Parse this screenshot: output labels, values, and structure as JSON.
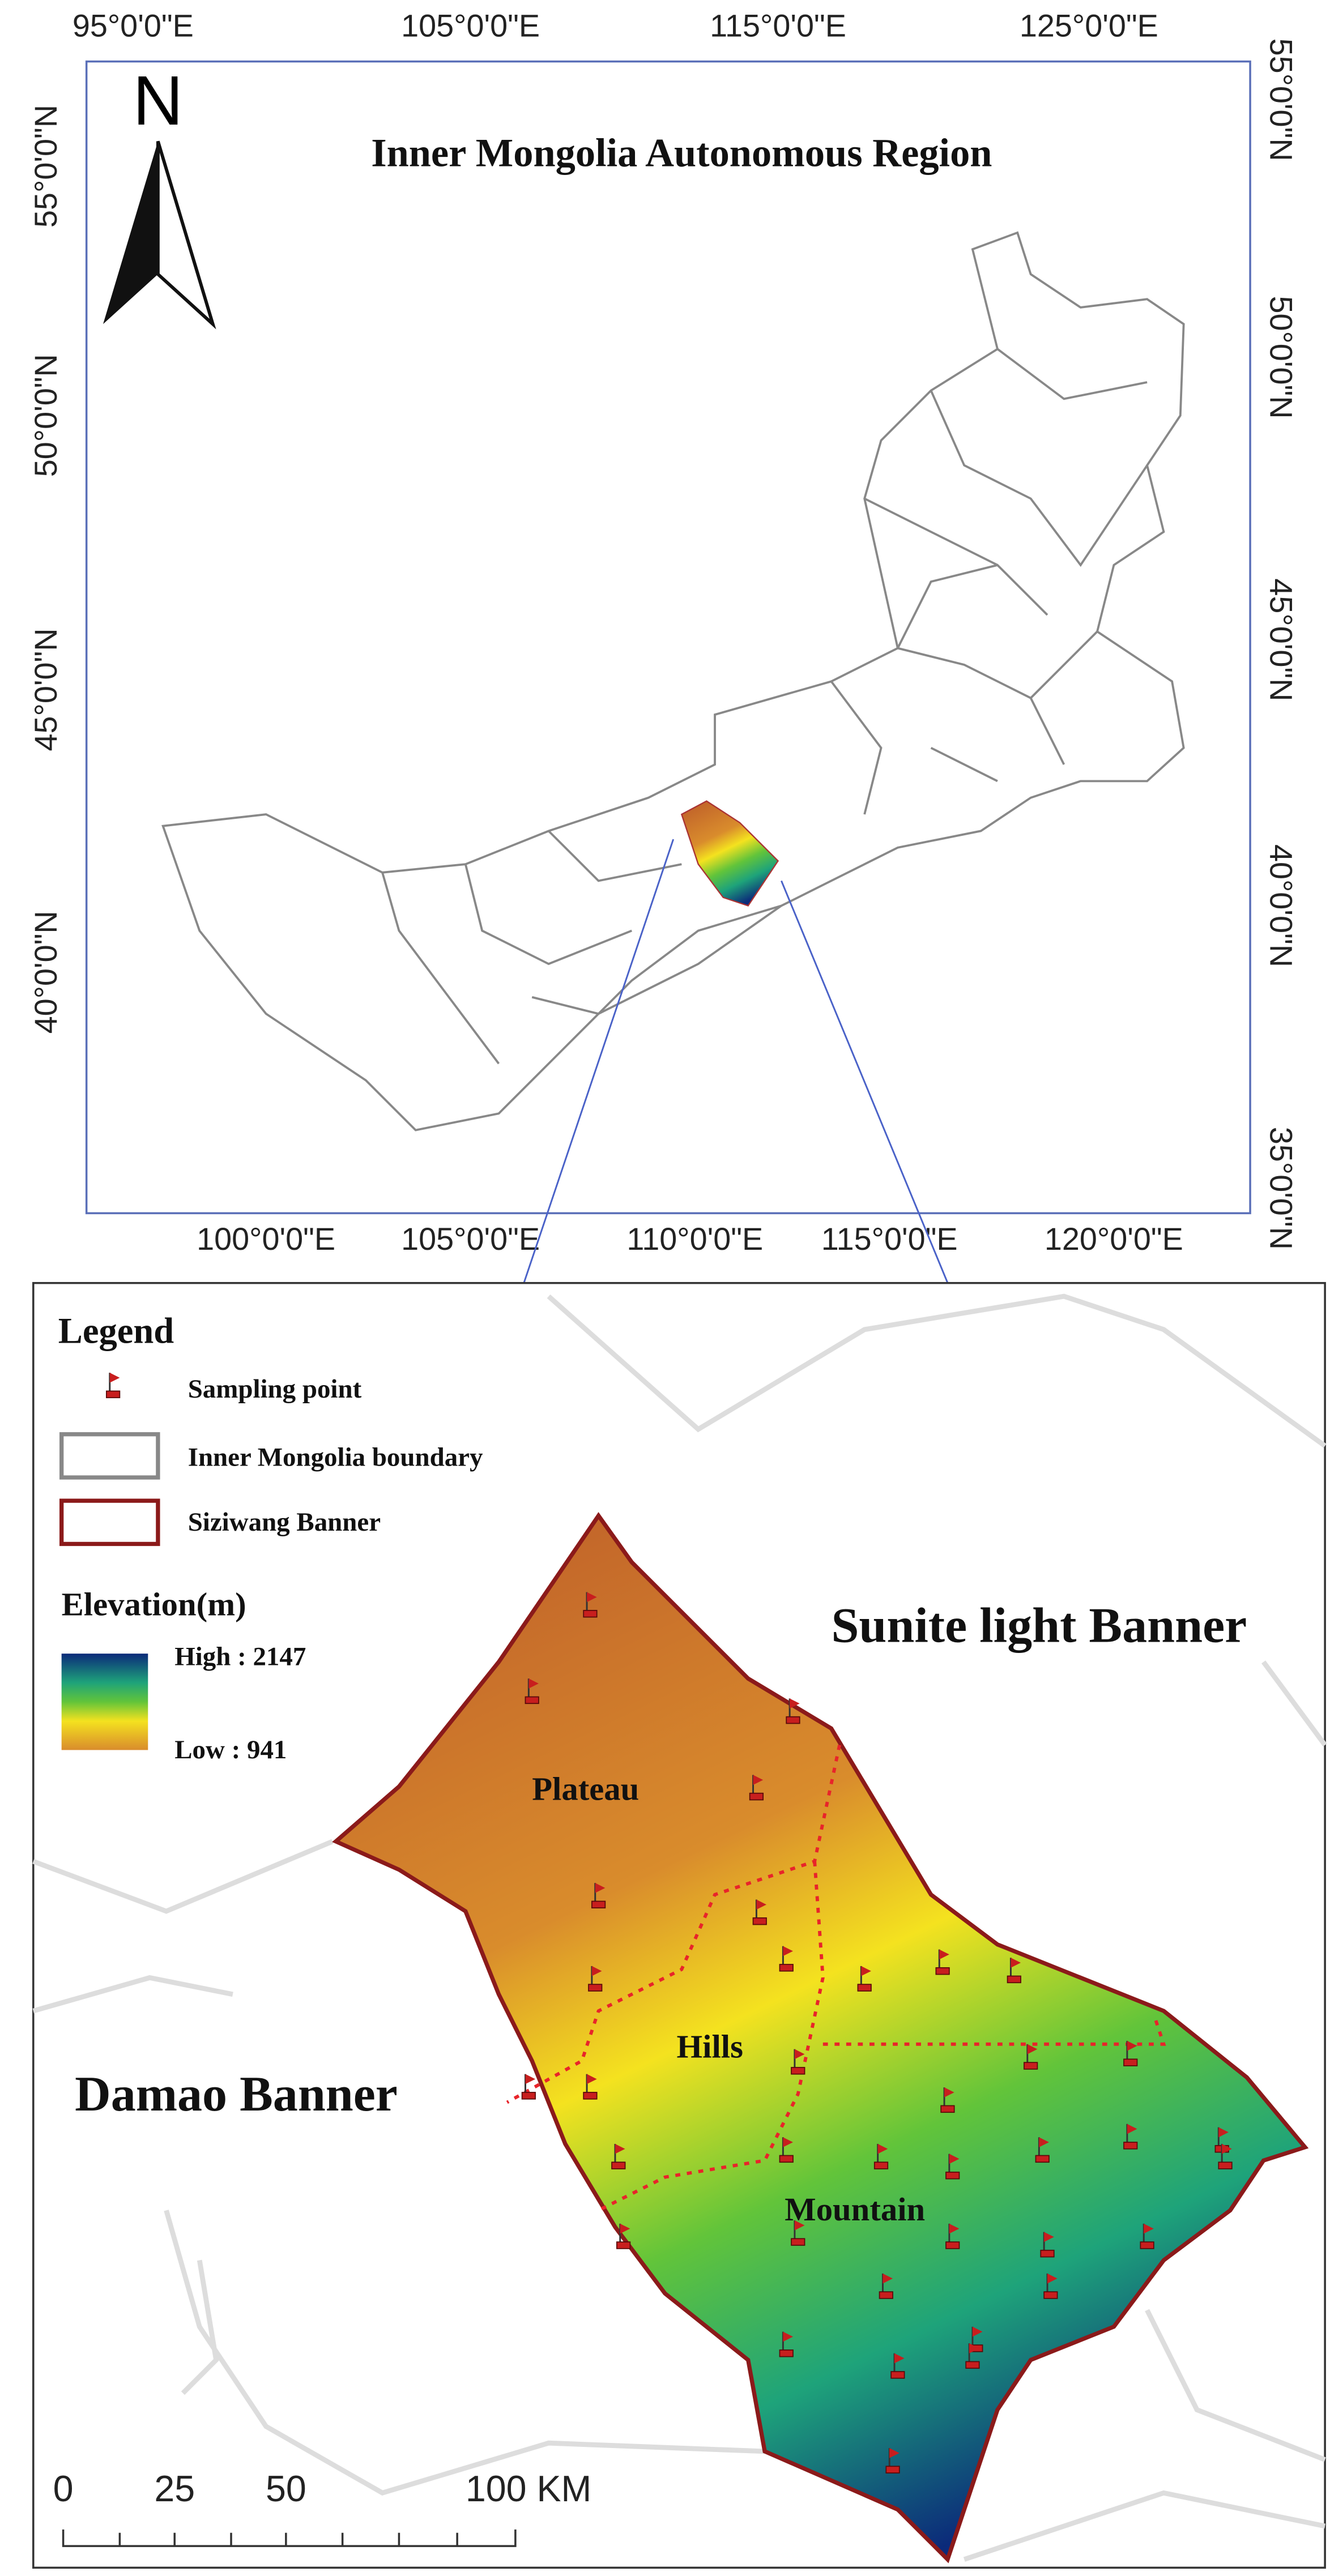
{
  "top_map": {
    "title": "Inner Mongolia Autonomous Region",
    "north_label": "N",
    "top_lon_labels": [
      "95°0'0\"E",
      "105°0'0\"E",
      "115°0'0\"E",
      "125°0'0\"E"
    ],
    "bottom_lon_labels": [
      "100°0'0\"E",
      "105°0'0\"E",
      "110°0'0\"E",
      "115°0'0\"E",
      "120°0'0\"E"
    ],
    "left_lat_labels": [
      "55°0'0\"N",
      "50°0'0\"N",
      "45°0'0\"N",
      "40°0'0\"N"
    ],
    "right_lat_labels": [
      "55°0'0\"N",
      "50°0'0\"N",
      "45°0'0\"N",
      "40°0'0\"N",
      "35°0'0\"N"
    ]
  },
  "bottom_map": {
    "legend": {
      "title": "Legend",
      "items": [
        "Sampling point",
        "Inner Mongolia boundary",
        "Siziwang Banner"
      ],
      "elevation_title": "Elevation(m)",
      "high_label": "High : 2147",
      "low_label": "Low : 941"
    },
    "regions": [
      "Plateau",
      "Hills",
      "Mountain",
      "Sunite light Banner",
      "Damao Banner"
    ],
    "scale_labels": [
      "0",
      "25",
      "50",
      "100 KM"
    ]
  }
}
